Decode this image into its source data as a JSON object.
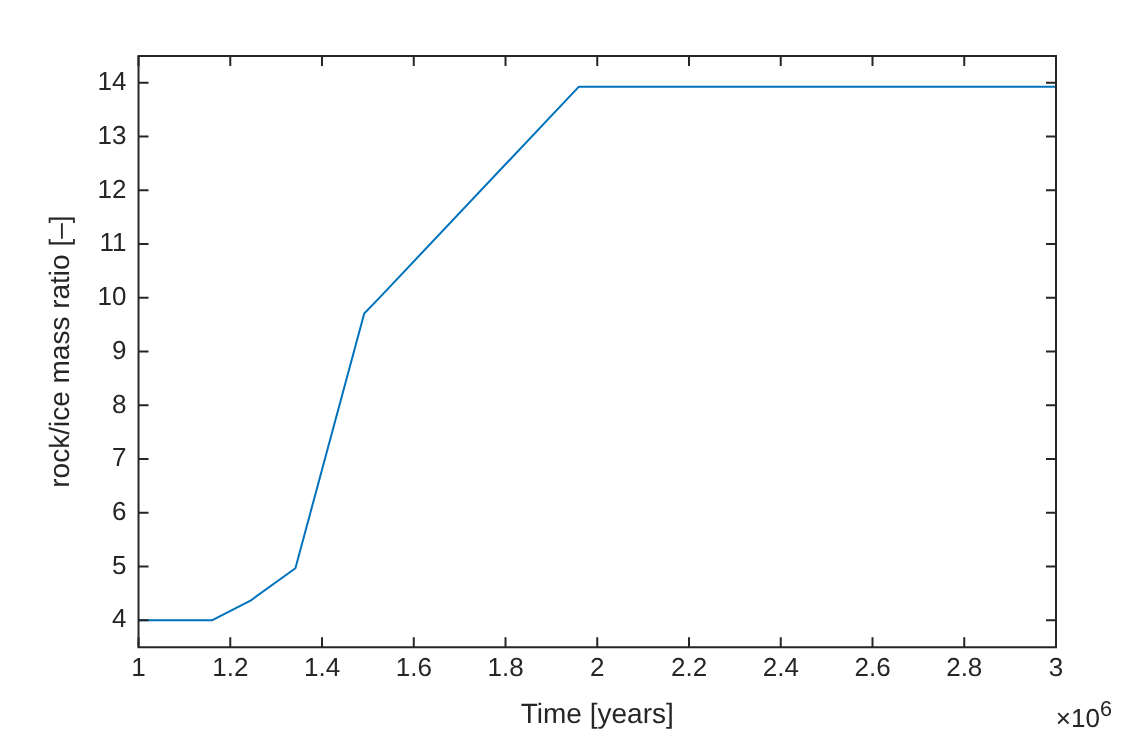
{
  "chart_data": {
    "type": "line",
    "xlabel": "Time [years]",
    "ylabel": "rock/ice mass ratio [–]",
    "x": [
      1.0,
      1.16,
      1.243,
      1.342,
      1.492,
      1.525,
      1.96,
      3.0
    ],
    "series": [
      {
        "color": "#0072bd",
        "values": [
          4.0,
          4.0,
          4.36,
          4.97,
          9.71,
          10.0,
          13.93,
          13.93
        ]
      }
    ],
    "xlim": [
      1,
      3
    ],
    "xticks": [
      1,
      1.2,
      1.4,
      1.6,
      1.8,
      2,
      2.2,
      2.4,
      2.6,
      2.8,
      3
    ],
    "ylim": [
      3.5,
      14.5
    ],
    "yticks": [
      4,
      5,
      6,
      7,
      8,
      9,
      10,
      11,
      12,
      13,
      14
    ],
    "annotations": [
      "×10$^{6}$"
    ],
    "grid": false,
    "legend": false,
    "marker": "none",
    "line_style": "solid"
  }
}
